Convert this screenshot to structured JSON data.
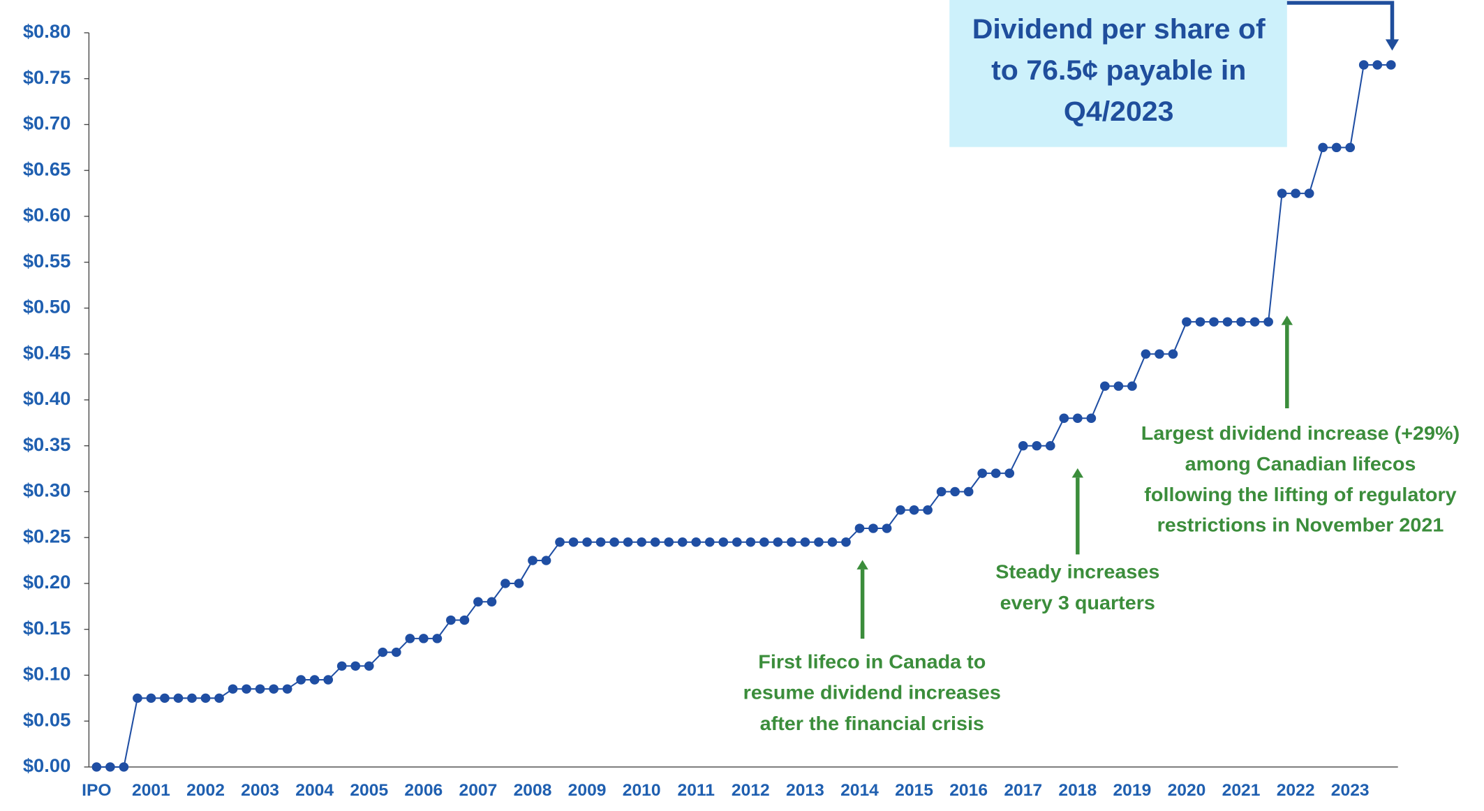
{
  "chart_data": {
    "type": "line",
    "categories": [
      "IPO",
      null,
      null,
      null,
      "2001",
      null,
      null,
      null,
      "2002",
      null,
      null,
      null,
      "2003",
      null,
      null,
      null,
      "2004",
      null,
      null,
      null,
      "2005",
      null,
      null,
      null,
      "2006",
      null,
      null,
      null,
      "2007",
      null,
      null,
      null,
      "2008",
      null,
      null,
      null,
      "2009",
      null,
      null,
      null,
      "2010",
      null,
      null,
      null,
      "2011",
      null,
      null,
      null,
      "2012",
      null,
      null,
      null,
      "2013",
      null,
      null,
      null,
      "2014",
      null,
      null,
      null,
      "2015",
      null,
      null,
      null,
      "2016",
      null,
      null,
      null,
      "2017",
      null,
      null,
      null,
      "2018",
      null,
      null,
      null,
      "2019",
      null,
      null,
      null,
      "2020",
      null,
      null,
      null,
      "2021",
      null,
      null,
      null,
      "2022",
      null,
      null,
      null,
      "2023",
      null,
      null,
      null
    ],
    "values": [
      0,
      0,
      0,
      0.075,
      0.075,
      0.075,
      0.075,
      0.075,
      0.075,
      0.075,
      0.085,
      0.085,
      0.085,
      0.085,
      0.085,
      0.095,
      0.095,
      0.095,
      0.11,
      0.11,
      0.11,
      0.125,
      0.125,
      0.14,
      0.14,
      0.14,
      0.16,
      0.16,
      0.18,
      0.18,
      0.2,
      0.2,
      0.225,
      0.225,
      0.245,
      0.245,
      0.245,
      0.245,
      0.245,
      0.245,
      0.245,
      0.245,
      0.245,
      0.245,
      0.245,
      0.245,
      0.245,
      0.245,
      0.245,
      0.245,
      0.245,
      0.245,
      0.245,
      0.245,
      0.245,
      0.245,
      0.26,
      0.26,
      0.26,
      0.28,
      0.28,
      0.28,
      0.3,
      0.3,
      0.3,
      0.32,
      0.32,
      0.32,
      0.35,
      0.35,
      0.35,
      0.38,
      0.38,
      0.38,
      0.415,
      0.415,
      0.415,
      0.45,
      0.45,
      0.45,
      0.485,
      0.485,
      0.485,
      0.485,
      0.485,
      0.485,
      0.485,
      0.625,
      0.625,
      0.625,
      0.675,
      0.675,
      0.675,
      0.765,
      0.765,
      0.765
    ],
    "color": "#1f4ea3",
    "ylim": [
      0,
      0.8
    ],
    "yticks": [
      {
        "value": 0,
        "label": "$0.00"
      },
      {
        "value": 0.05,
        "label": "$0.05"
      },
      {
        "value": 0.1,
        "label": "$0.10"
      },
      {
        "value": 0.15,
        "label": "$0.15"
      },
      {
        "value": 0.2,
        "label": "$0.20"
      },
      {
        "value": 0.25,
        "label": "$0.25"
      },
      {
        "value": 0.3,
        "label": "$0.30"
      },
      {
        "value": 0.35,
        "label": "$0.35"
      },
      {
        "value": 0.4,
        "label": "$0.40"
      },
      {
        "value": 0.45,
        "label": "$0.45"
      },
      {
        "value": 0.5,
        "label": "$0.50"
      },
      {
        "value": 0.55,
        "label": "$0.55"
      },
      {
        "value": 0.6,
        "label": "$0.60"
      },
      {
        "value": 0.65,
        "label": "$0.65"
      },
      {
        "value": 0.7,
        "label": "$0.70"
      },
      {
        "value": 0.75,
        "label": "$0.75"
      },
      {
        "value": 0.8,
        "label": "$0.80"
      }
    ],
    "grid": false,
    "callout": [
      "Dividend per share of",
      "to 76.5¢ payable in",
      "Q4/2023"
    ],
    "annotations": [
      [
        "First lifeco in Canada to",
        "resume dividend increases",
        "after the financial crisis"
      ],
      [
        "Steady increases",
        "every 3 quarters"
      ],
      [
        "Largest dividend increase (+29%)",
        "among Canadian lifecos",
        "following the lifting of regulatory",
        "restrictions in November 2021"
      ]
    ]
  }
}
